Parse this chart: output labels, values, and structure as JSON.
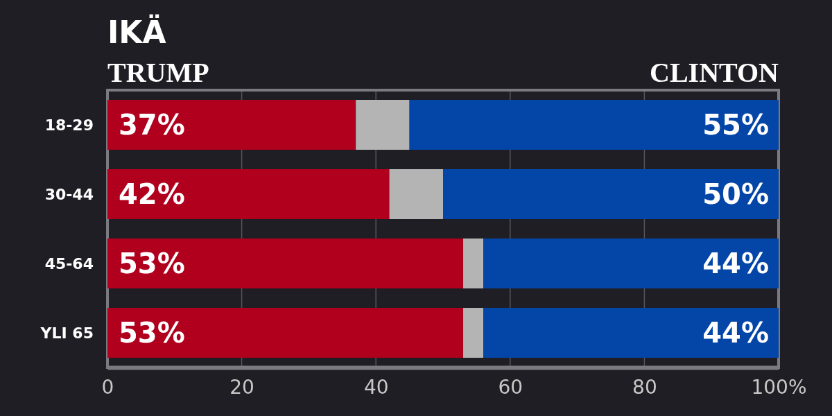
{
  "chart_data": {
    "type": "bar",
    "title": "IKÄ",
    "orientation": "horizontal",
    "stacked": true,
    "categories": [
      "18-29",
      "30-44",
      "45-64",
      "YLI 65"
    ],
    "series": [
      {
        "name": "TRUMP",
        "color": "#b0001e",
        "values": [
          37,
          42,
          53,
          53
        ],
        "value_labels": [
          "37%",
          "42%",
          "53%",
          "53%"
        ]
      },
      {
        "color": "#b4b4b4",
        "values": [
          8,
          8,
          3,
          3
        ]
      },
      {
        "name": "CLINTON",
        "color": "#0446a8",
        "values": [
          55,
          50,
          44,
          44
        ],
        "value_labels": [
          "55%",
          "50%",
          "44%",
          "44%"
        ]
      }
    ],
    "xlim": [
      0,
      100
    ],
    "xticks": [
      0,
      20,
      40,
      60,
      80,
      {
        "value": 100,
        "label": "100%"
      }
    ],
    "grid": "x",
    "legend": "top"
  }
}
